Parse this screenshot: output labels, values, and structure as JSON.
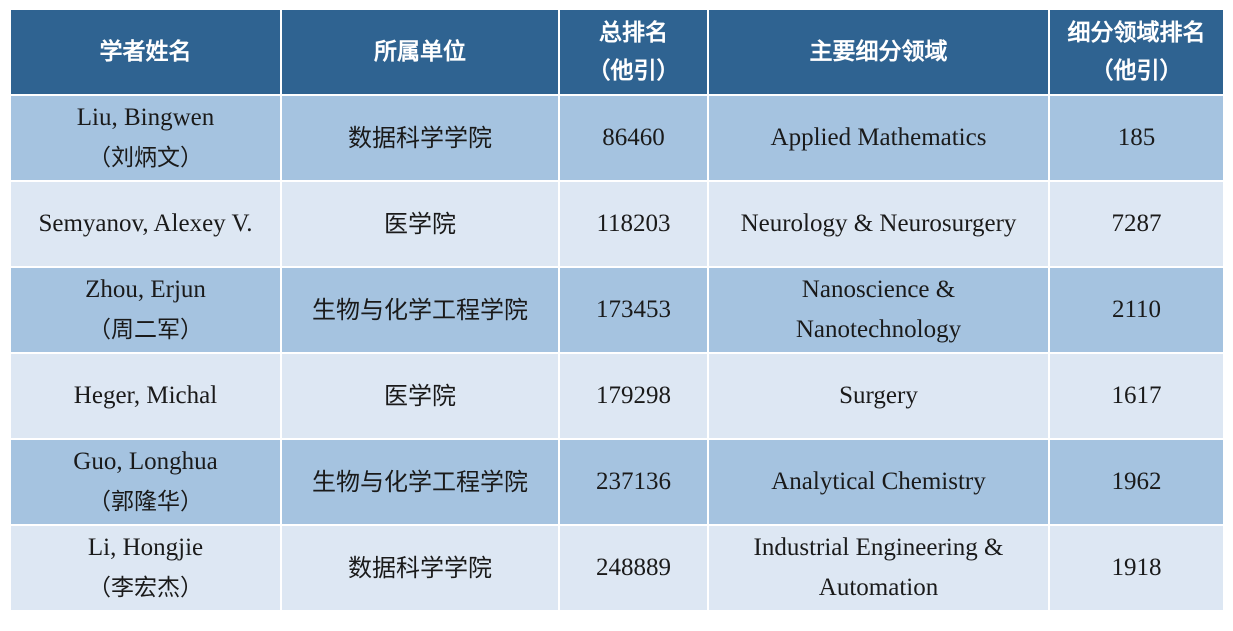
{
  "headers": [
    "学者姓名",
    "所属单位",
    "总排名",
    "（他引）",
    "主要细分领域",
    "细分领域排名",
    "（他引）"
  ],
  "rows": [
    {
      "name": "Liu, Bingwen",
      "name_cn": "（刘炳文）",
      "unit": "数据科学学院",
      "rank": "86460",
      "field": "Applied Mathematics",
      "field2": "",
      "field_rank": "185"
    },
    {
      "name": "Semyanov, Alexey V.",
      "name_cn": "",
      "unit": "医学院",
      "rank": "118203",
      "field": "Neurology & Neurosurgery",
      "field2": "",
      "field_rank": "7287"
    },
    {
      "name": "Zhou, Erjun",
      "name_cn": "（周二军）",
      "unit": "生物与化学工程学院",
      "rank": "173453",
      "field": "Nanoscience &",
      "field2": "Nanotechnology",
      "field_rank": "2110"
    },
    {
      "name": "Heger, Michal",
      "name_cn": "",
      "unit": "医学院",
      "rank": "179298",
      "field": "Surgery",
      "field2": "",
      "field_rank": "1617"
    },
    {
      "name": "Guo, Longhua",
      "name_cn": "（郭隆华）",
      "unit": "生物与化学工程学院",
      "rank": "237136",
      "field": "Analytical Chemistry",
      "field2": "",
      "field_rank": "1962"
    },
    {
      "name": "Li, Hongjie",
      "name_cn": "（李宏杰）",
      "unit": "数据科学学院",
      "rank": "248889",
      "field": "Industrial Engineering &",
      "field2": "Automation",
      "field_rank": "1918"
    }
  ]
}
